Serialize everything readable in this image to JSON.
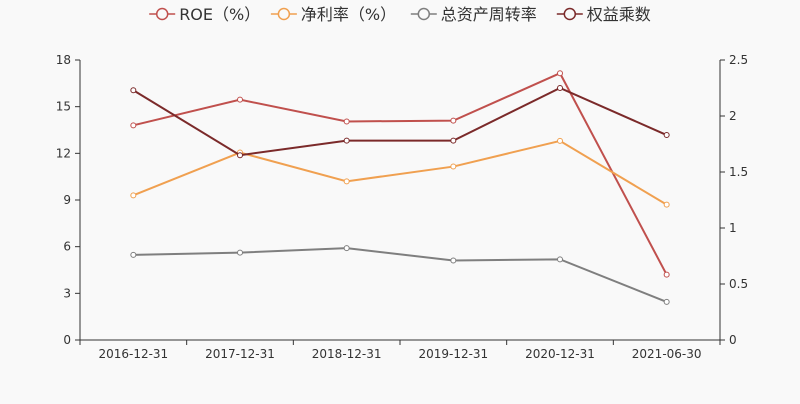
{
  "chart_data": {
    "type": "line",
    "categories": [
      "2016-12-31",
      "2017-12-31",
      "2018-12-31",
      "2019-12-31",
      "2020-12-31",
      "2021-06-30"
    ],
    "left_axis": {
      "ylim": [
        0,
        18
      ],
      "ticks": [
        "0",
        "3",
        "6",
        "9",
        "12",
        "15",
        "18"
      ]
    },
    "right_axis": {
      "ylim": [
        0,
        2.5
      ],
      "ticks": [
        "0",
        "0.5",
        "1",
        "1.5",
        "2",
        "2.5"
      ]
    },
    "grid": false,
    "legend_position": "top-center",
    "series": [
      {
        "name": "ROE（%）",
        "axis": "left",
        "color": "#c0504d",
        "values": [
          13.8,
          15.45,
          14.05,
          14.1,
          17.15,
          4.2
        ]
      },
      {
        "name": "净利率（%）",
        "axis": "left",
        "color": "#f0a050",
        "values": [
          9.3,
          12.05,
          10.2,
          11.15,
          12.8,
          8.7
        ]
      },
      {
        "name": "总资产周转率",
        "axis": "right",
        "color": "#7f7f7f",
        "values": [
          0.76,
          0.78,
          0.82,
          0.71,
          0.72,
          0.34
        ]
      },
      {
        "name": "权益乘数",
        "axis": "right",
        "color": "#7b2a2a",
        "values": [
          2.23,
          1.65,
          1.78,
          1.78,
          2.25,
          1.83
        ]
      }
    ]
  }
}
